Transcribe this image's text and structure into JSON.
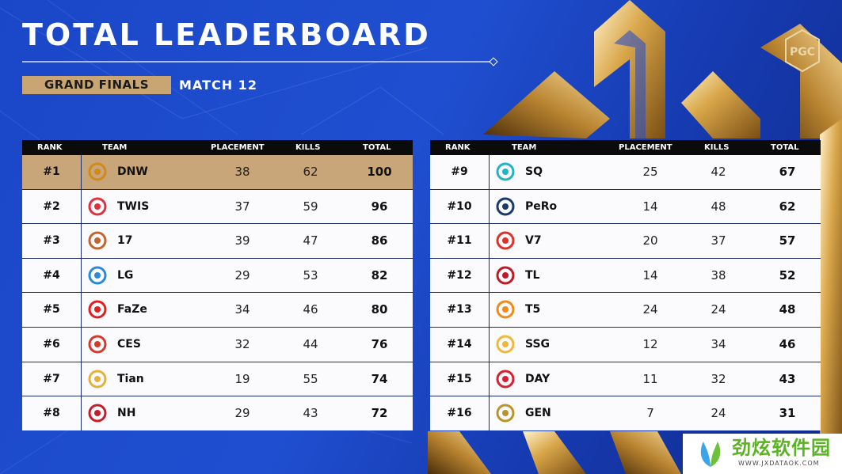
{
  "header": {
    "title": "TOTAL LEADERBOARD",
    "stage": "GRAND FINALS",
    "match": "MATCH 12",
    "logo_text": "PGC"
  },
  "columns": {
    "rank": "RANK",
    "team": "TEAM",
    "placement": "PLACEMENT",
    "kills": "KILLS",
    "total": "TOTAL"
  },
  "left_table": [
    {
      "rank": "#1",
      "team": "DNW",
      "placement": "38",
      "kills": "62",
      "total": "100",
      "logo_color": "#d08a1a",
      "logo_icon": "dnw-logo-icon"
    },
    {
      "rank": "#2",
      "team": "TWIS",
      "placement": "37",
      "kills": "59",
      "total": "96",
      "logo_color": "#e0303c",
      "logo_icon": "twis-logo-icon"
    },
    {
      "rank": "#3",
      "team": "17",
      "placement": "39",
      "kills": "47",
      "total": "86",
      "logo_color": "#c4642a",
      "logo_icon": "17-gaming-logo-icon"
    },
    {
      "rank": "#4",
      "team": "LG",
      "placement": "29",
      "kills": "53",
      "total": "82",
      "logo_color": "#2a8ad6",
      "logo_icon": "lg-logo-icon"
    },
    {
      "rank": "#5",
      "team": "FaZe",
      "placement": "34",
      "kills": "46",
      "total": "80",
      "logo_color": "#e02020",
      "logo_icon": "faze-logo-icon"
    },
    {
      "rank": "#6",
      "team": "CES",
      "placement": "32",
      "kills": "44",
      "total": "76",
      "logo_color": "#d33a2a",
      "logo_icon": "ces-logo-icon"
    },
    {
      "rank": "#7",
      "team": "Tian",
      "placement": "19",
      "kills": "55",
      "total": "74",
      "logo_color": "#e2b23a",
      "logo_icon": "tian-logo-icon"
    },
    {
      "rank": "#8",
      "team": "NH",
      "placement": "29",
      "kills": "43",
      "total": "72",
      "logo_color": "#c41e2a",
      "logo_icon": "nh-logo-icon"
    }
  ],
  "right_table": [
    {
      "rank": "#9",
      "team": "SQ",
      "placement": "25",
      "kills": "42",
      "total": "67",
      "logo_color": "#22b3c9",
      "logo_icon": "sq-logo-icon"
    },
    {
      "rank": "#10",
      "team": "PeRo",
      "placement": "14",
      "kills": "48",
      "total": "62",
      "logo_color": "#1a3a6a",
      "logo_icon": "pero-logo-icon"
    },
    {
      "rank": "#11",
      "team": "V7",
      "placement": "20",
      "kills": "37",
      "total": "57",
      "logo_color": "#e0302a",
      "logo_icon": "v7-logo-icon"
    },
    {
      "rank": "#12",
      "team": "TL",
      "placement": "14",
      "kills": "38",
      "total": "52",
      "logo_color": "#c01a26",
      "logo_icon": "tyloo-logo-icon"
    },
    {
      "rank": "#13",
      "team": "T5",
      "placement": "24",
      "kills": "24",
      "total": "48",
      "logo_color": "#f08a1a",
      "logo_icon": "t5-logo-icon"
    },
    {
      "rank": "#14",
      "team": "SSG",
      "placement": "12",
      "kills": "34",
      "total": "46",
      "logo_color": "#f0b83a",
      "logo_icon": "ssg-logo-icon"
    },
    {
      "rank": "#15",
      "team": "DAY",
      "placement": "11",
      "kills": "32",
      "total": "43",
      "logo_color": "#d8202e",
      "logo_icon": "day-logo-icon"
    },
    {
      "rank": "#16",
      "team": "GEN",
      "placement": "7",
      "kills": "24",
      "total": "31",
      "logo_color": "#b8952a",
      "logo_icon": "gen-logo-icon"
    }
  ],
  "watermark": {
    "text": "劲炫软件园",
    "url": "WWW.JXDATAOK.COM"
  },
  "colors": {
    "background": "#1f4fd0",
    "gold": "#c9a574",
    "header_bar": "#0b0b0b",
    "first_row": "#c9a57a"
  }
}
